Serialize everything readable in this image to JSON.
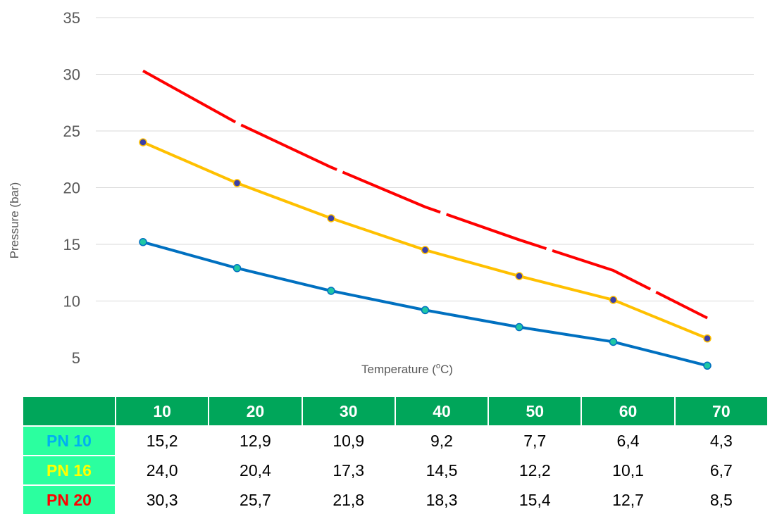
{
  "chart_data": {
    "type": "line",
    "xlabel": "Temperature (⁰C)",
    "xlabel_parts": [
      "Temperature (",
      "o",
      "C)"
    ],
    "ylabel": "Pressure (bar)",
    "x": [
      10,
      20,
      30,
      40,
      50,
      60,
      70
    ],
    "ylim": [
      5,
      35
    ],
    "yticks": [
      5,
      10,
      15,
      20,
      25,
      30,
      35
    ],
    "grid": true,
    "series": [
      {
        "name": "PN 10",
        "color": "#0070c0",
        "marker_color": "#1fc7a5",
        "dashed": false,
        "values": [
          15.2,
          12.9,
          10.9,
          9.2,
          7.7,
          6.4,
          4.3
        ]
      },
      {
        "name": "PN 16",
        "color": "#ffc000",
        "marker_color": "#3b3fa8",
        "dashed": false,
        "values": [
          24.0,
          20.4,
          17.3,
          14.5,
          12.2,
          10.1,
          6.7
        ]
      },
      {
        "name": "PN 20",
        "color": "#ff0000",
        "marker_color": null,
        "dashed": true,
        "values": [
          30.3,
          25.7,
          21.8,
          18.3,
          15.4,
          12.7,
          8.5
        ]
      }
    ]
  },
  "table": {
    "header": [
      "",
      "10",
      "20",
      "30",
      "40",
      "50",
      "60",
      "70"
    ],
    "rows": [
      {
        "label": "PN 10",
        "label_color": "#00b0f0",
        "cells": [
          "15,2",
          "12,9",
          "10,9",
          "9,2",
          "7,7",
          "6,4",
          "4,3"
        ]
      },
      {
        "label": "PN 16",
        "label_color": "#ffff00",
        "cells": [
          "24,0",
          "20,4",
          "17,3",
          "14,5",
          "12,2",
          "10,1",
          "6,7"
        ]
      },
      {
        "label": "PN 20",
        "label_color": "#ff0000",
        "cells": [
          "30,3",
          "25,7",
          "21,8",
          "18,3",
          "15,4",
          "12,7",
          "8,5"
        ]
      }
    ]
  }
}
